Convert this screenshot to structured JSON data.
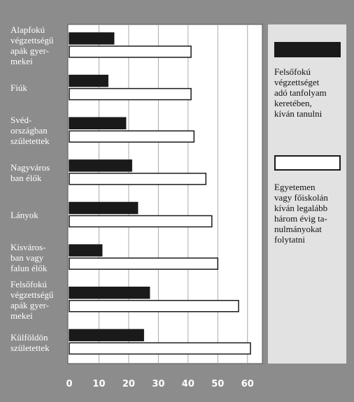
{
  "chart_data": {
    "type": "barh",
    "categories": [
      "Alapfokú\nvégzettségű\napák gyer-\nmekei",
      "Fiúk",
      "Svéd-\nországban\nszületettek",
      "Nagyváros\nban élők",
      "Lányok",
      "Kisváros-\nban vagy\nfalun élők",
      "Felsőfokú\nvégzettségű\napák gyer-\nmekei",
      "Külföldön\nszületettek"
    ],
    "series": [
      {
        "name": "Felsőfokú\nvégzettséget\nadó tanfolyam\nkeretében,\nkíván tanulni",
        "color": "#1a1a1a",
        "values": [
          15,
          13,
          19,
          21,
          23,
          11,
          27,
          25
        ]
      },
      {
        "name": "Egyetemen\nvagy főiskolán\nkíván legalább\nhárom évig ta-\nnulmányokat\nfolytatni",
        "color": "#ffffff",
        "values": [
          41,
          41,
          42,
          46,
          48,
          50,
          57,
          61
        ]
      }
    ],
    "xlim": [
      0,
      65
    ],
    "xticks": [
      0,
      10,
      20,
      30,
      40,
      50,
      60
    ],
    "grid": true
  }
}
